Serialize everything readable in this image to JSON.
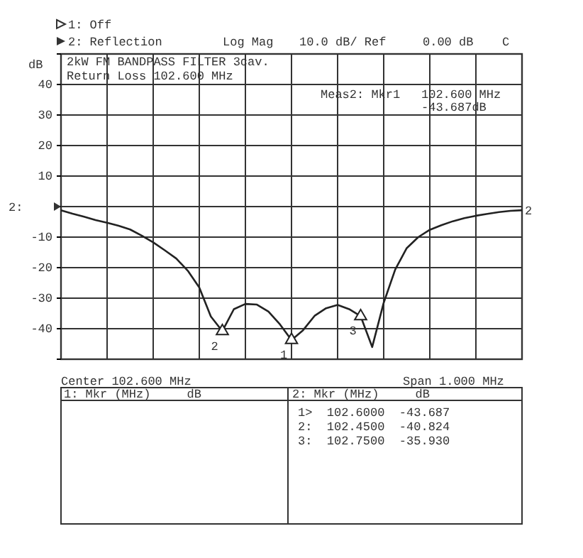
{
  "chart_data": {
    "type": "line",
    "title": "2kW FM BANDPASS FILTER 3cav.",
    "subtitle": "Return Loss 102.600 MHz",
    "ylabel": "dB",
    "categories": [
      null,
      null,
      null,
      null,
      null,
      null,
      null,
      null,
      null,
      null,
      null,
      null,
      null,
      null,
      null,
      null,
      null,
      null,
      null,
      null,
      null,
      null,
      null,
      null,
      null,
      null,
      null,
      null,
      null,
      null,
      null,
      null,
      null,
      null,
      null,
      null,
      null,
      null,
      null,
      null,
      null
    ],
    "ylim": [
      -50,
      50
    ],
    "yticks": [
      {
        "value": -50,
        "label": null
      },
      -40,
      -30,
      -20,
      -10,
      {
        "value": 0,
        "label": null
      },
      10,
      20,
      30,
      40,
      {
        "value": 50,
        "label": null
      }
    ],
    "grid": true,
    "tick_labels": "y",
    "series": [
      {
        "name": "2",
        "color": "#222222",
        "marker": "none",
        "values": [
          -1.2,
          -2.3,
          -3.3,
          -4.4,
          -5.3,
          -6.3,
          -7.5,
          -9.5,
          -11.7,
          -14.3,
          -17.0,
          -21.0,
          -26.5,
          -36.0,
          -40.8,
          -33.6,
          -31.9,
          -32.1,
          -34.4,
          -38.6,
          -43.7,
          -40.5,
          -35.8,
          -33.3,
          -32.2,
          -33.6,
          -35.9,
          -46.0,
          -31.5,
          -20.6,
          -13.6,
          -10.0,
          -7.6,
          -6.1,
          -4.8,
          -3.8,
          -3.0,
          -2.4,
          -1.8,
          -1.4,
          -1.2
        ]
      },
      {
        "name": "1",
        "type": "scatter",
        "color": "#222222",
        "marker": "triangle",
        "values": [
          null,
          null,
          null,
          null,
          null,
          null,
          null,
          null,
          null,
          null,
          null,
          null,
          null,
          null,
          null,
          null,
          null,
          null,
          null,
          null,
          -43.687,
          null,
          null,
          null,
          null,
          null,
          null,
          null,
          null,
          null,
          null,
          null,
          null,
          null,
          null,
          null,
          null,
          null,
          null,
          null,
          null
        ]
      },
      {
        "name": "2",
        "type": "scatter",
        "color": "#222222",
        "marker": "triangle",
        "values": [
          null,
          null,
          null,
          null,
          null,
          null,
          null,
          null,
          null,
          null,
          null,
          null,
          null,
          null,
          -40.824,
          null,
          null,
          null,
          null,
          null,
          null,
          null,
          null,
          null,
          null,
          null,
          null,
          null,
          null,
          null,
          null,
          null,
          null,
          null,
          null,
          null,
          null,
          null,
          null,
          null,
          null
        ]
      },
      {
        "name": "3",
        "type": "scatter",
        "color": "#222222",
        "marker": "triangle",
        "values": [
          null,
          null,
          null,
          null,
          null,
          null,
          null,
          null,
          null,
          null,
          null,
          null,
          null,
          null,
          null,
          null,
          null,
          null,
          null,
          null,
          null,
          null,
          null,
          null,
          null,
          null,
          -35.93,
          null,
          null,
          null,
          null,
          null,
          null,
          null,
          null,
          null,
          null,
          null,
          null,
          null,
          null
        ]
      }
    ],
    "annotations": [
      "1: Off",
      "2: Reflection",
      "Log Mag",
      "10.0 dB/ Ref",
      "0.00 dB",
      "C",
      "Meas2: Mkr1",
      "102.600 MHz",
      "-43.687dB",
      "Center 102.600 MHz",
      "Span 1.000 MHz",
      "1: Mkr (MHz)     dB",
      "2: Mkr (MHz)     dB",
      "1>  102.6000  -43.687",
      "2:  102.4500  -40.824",
      "3:  102.7500  -35.930",
      "2:"
    ]
  }
}
